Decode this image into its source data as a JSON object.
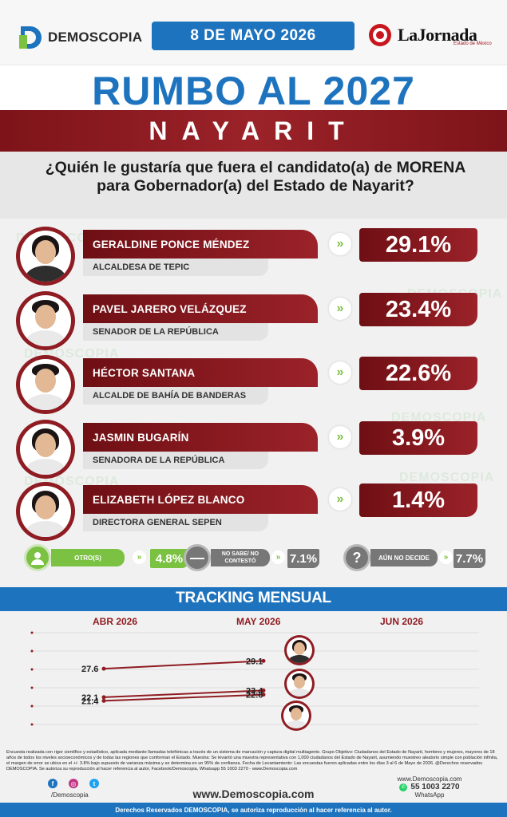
{
  "header": {
    "brand": "DEMOSCOPIA",
    "date": "8 DE MAYO 2026",
    "partner": "LaJornada",
    "partner_sub": "Estado de México"
  },
  "title": "RUMBO AL 2027",
  "state": "NAYARIT",
  "question": "¿Quién le gustaría que fuera el candidato(a) de MORENA para Gobernador(a) del Estado de Nayarit?",
  "watermark": "DEMOSCOPIA",
  "candidates": [
    {
      "name": "GERALDINE PONCE MÉNDEZ",
      "role": "ALCALDESA DE TEPIC",
      "pct": "29.1%"
    },
    {
      "name": "PAVEL JARERO VELÁZQUEZ",
      "role": "SENADOR DE LA REPÚBLICA",
      "pct": "23.4%"
    },
    {
      "name": "HÉCTOR SANTANA",
      "role": "ALCALDE DE BAHÍA DE BANDERAS",
      "pct": "22.6%"
    },
    {
      "name": "JASMIN BUGARÍN",
      "role": "SENADORA DE LA REPÚBLICA",
      "pct": "3.9%"
    },
    {
      "name": "ELIZABETH LÓPEZ BLANCO",
      "role": "DIRECTORA GENERAL SEPEN",
      "pct": "1.4%"
    }
  ],
  "others": [
    {
      "label": "OTRO(S)",
      "value": "4.8%",
      "color": "#7bc142"
    },
    {
      "label": "NO SABE/ NO CONTESTÓ",
      "value": "7.1%",
      "color": "#777777"
    },
    {
      "label": "AÚN NO DECIDE",
      "value": "7.7%",
      "color": "#777777"
    }
  ],
  "tracking": {
    "title": "TRACKING MENSUAL"
  },
  "chart_data": {
    "type": "line",
    "title": "TRACKING MENSUAL",
    "categories": [
      "ABR 2026",
      "MAY 2026",
      "JUN 2026"
    ],
    "series": [
      {
        "values": [
          27.6,
          29.1,
          null
        ],
        "color": "#8f1c22"
      },
      {
        "values": [
          22.1,
          23.4,
          null
        ],
        "color": "#8f1c22"
      },
      {
        "values": [
          21.4,
          22.6,
          null
        ],
        "color": "#8f1c22"
      }
    ],
    "grid": true
  },
  "footer": {
    "notes": "Encuesta realizada con rigor científico y estadístico, aplicada mediante llamadas telefónicas a través de un sistema de marcación y captura digital multiagente. Grupo Objetivo: Ciudadanos del Estado de Nayarit, hombres y mujeres, mayores de 18 años de todos los niveles socioeconómicos y de todas las regiones que conforman el Estado. Muestra: Se levantó una muestra representativa con 1,000 ciudadanos del Estado de Nayarit, asumiendo muestreo aleatorio simple con población infinita, el margen de error se ubica en el +/- 3.8% bajo supuesto de varianza máxima y se determina en un 95% de confianza. Fecha de Levantamiento: Las encuestas fueron aplicadas entre los días 3 al 6 de Mayo de 2026. @Derechos reservados DEMOSCOPIA. Se autoriza su reproducción al hacer referencia al autor, Facebook/Demoscopia, Whatsapp 55 1003 2270 - www.Demoscopia.com",
    "handle": "/Demoscopia",
    "site": "www.Demoscopia.com",
    "site_small": "www.Demoscopia.com",
    "phone": "55 1003 2270",
    "whatsapp": "WhatsApp",
    "rights": "Derechos Reservados DEMOSCOPIA, se autoriza reproducción al hacer referencia al autor."
  }
}
